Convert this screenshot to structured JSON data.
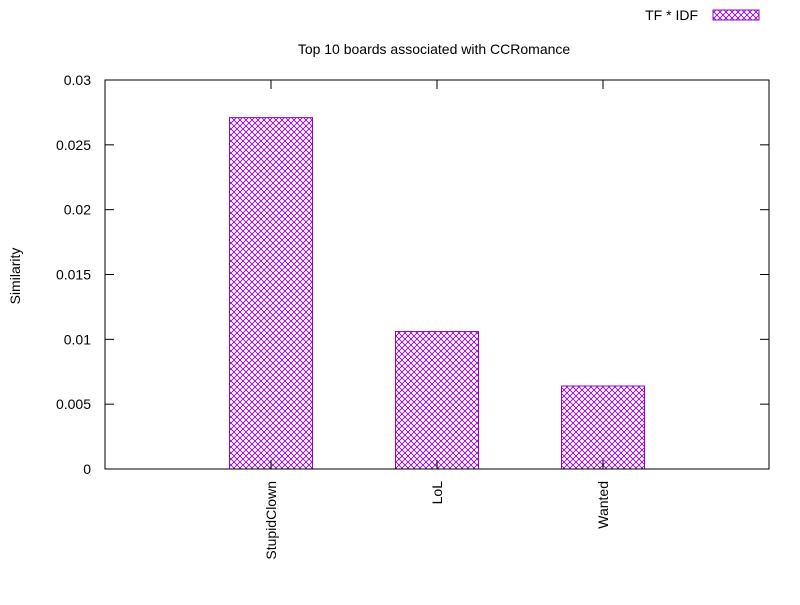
{
  "chart_data": {
    "type": "bar",
    "title": "Top 10 boards associated with CCRomance",
    "xlabel": "",
    "ylabel": "Similarity",
    "categories": [
      "StupidClown",
      "LoL",
      "Wanted"
    ],
    "series": [
      {
        "name": "TF * IDF",
        "values": [
          0.0271,
          0.0106,
          0.0064
        ]
      }
    ],
    "ylim": [
      0,
      0.03
    ],
    "yticks": [
      "0",
      "0.005",
      "0.01",
      "0.015",
      "0.02",
      "0.025",
      "0.03"
    ],
    "grid": false,
    "legend_position": "top-right",
    "bar_pattern": "crosshatch",
    "colors": {
      "bar": "#9400d3",
      "axes": "#000000",
      "background": "#ffffff"
    }
  }
}
